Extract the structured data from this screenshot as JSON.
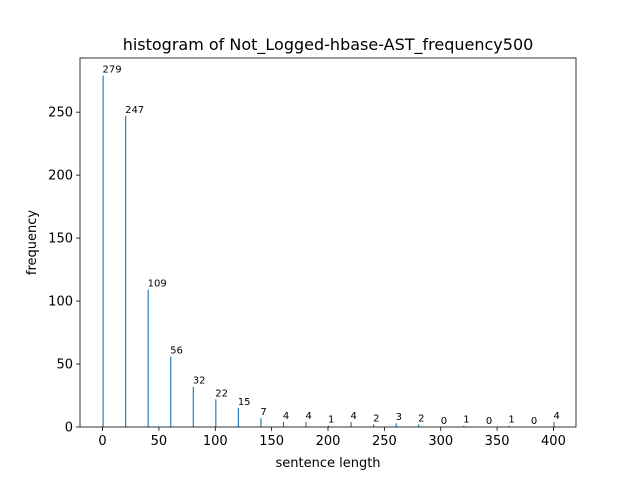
{
  "chart_data": {
    "type": "bar",
    "title": "histogram of Not_Logged-hbase-AST_frequency500",
    "xlabel": "sentence length",
    "ylabel": "frequency",
    "x": [
      0,
      20,
      40,
      60,
      80,
      100,
      120,
      140,
      160,
      180,
      200,
      220,
      240,
      260,
      280,
      300,
      320,
      340,
      360,
      380,
      400
    ],
    "values": [
      279,
      247,
      109,
      56,
      32,
      22,
      15,
      7,
      4,
      4,
      1,
      4,
      2,
      3,
      2,
      0,
      1,
      0,
      1,
      0,
      4
    ],
    "bar_width": 1,
    "xlim": [
      -20,
      420
    ],
    "ylim": [
      0,
      293
    ],
    "xticks": [
      0,
      50,
      100,
      150,
      200,
      250,
      300,
      350,
      400
    ],
    "yticks": [
      0,
      50,
      100,
      150,
      200,
      250
    ],
    "grid": false,
    "bar_color": "#1f77b4"
  }
}
